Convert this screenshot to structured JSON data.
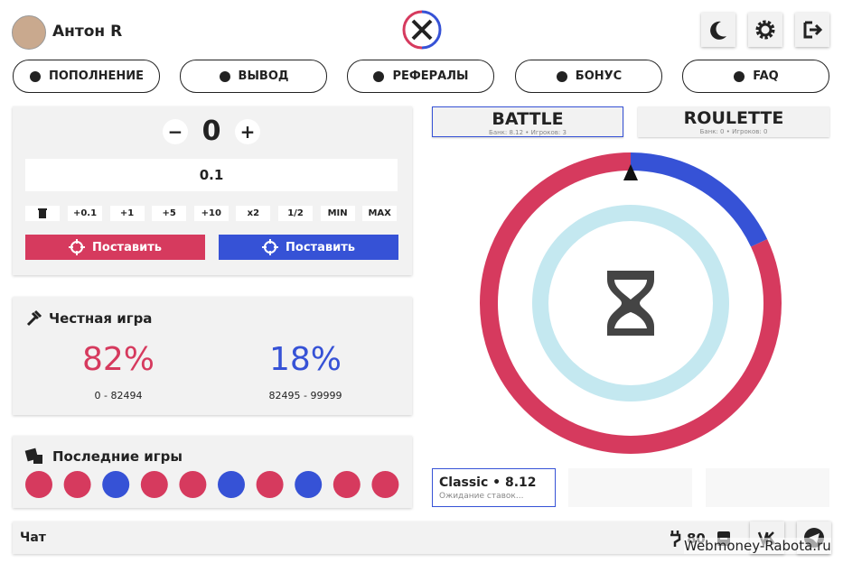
{
  "header": {
    "user_name": "Антон R"
  },
  "nav": [
    "ПОПОЛНЕНИЕ",
    "ВЫВОД",
    "РЕФЕРАЛЫ",
    "БОНУС",
    "FAQ"
  ],
  "bet": {
    "minus": "−",
    "count": "0",
    "plus": "+",
    "amount": "0.1",
    "quick": [
      "+0.1",
      "+1",
      "+5",
      "+10",
      "x2",
      "1/2",
      "MIN",
      "MAX"
    ],
    "place_red": "Поставить",
    "place_blue": "Поставить"
  },
  "fair_game": {
    "title": "Честная игра",
    "red": {
      "percent": "82%",
      "range": "0 - 82494"
    },
    "blue": {
      "percent": "18%",
      "range": "82495 - 99999"
    }
  },
  "last_games": {
    "title": "Последние игры",
    "colors": [
      "#d63a5e",
      "#d63a5e",
      "#3652d6",
      "#d63a5e",
      "#d63a5e",
      "#3652d6",
      "#d63a5e",
      "#3652d6",
      "#d63a5e",
      "#d63a5e"
    ]
  },
  "tabs": [
    {
      "label": "BATTLE",
      "sub": "Банк: 8.12 • Игроков: 3"
    },
    {
      "label": "ROULETTE",
      "sub": "Банк: 0 • Игроков: 0"
    }
  ],
  "round": {
    "title": "Classic • 8.12",
    "status": "Ожидание ставок..."
  },
  "chat": {
    "title": "Чат",
    "online": "80"
  },
  "watermark": "Webmoney-Rabota.ru"
}
